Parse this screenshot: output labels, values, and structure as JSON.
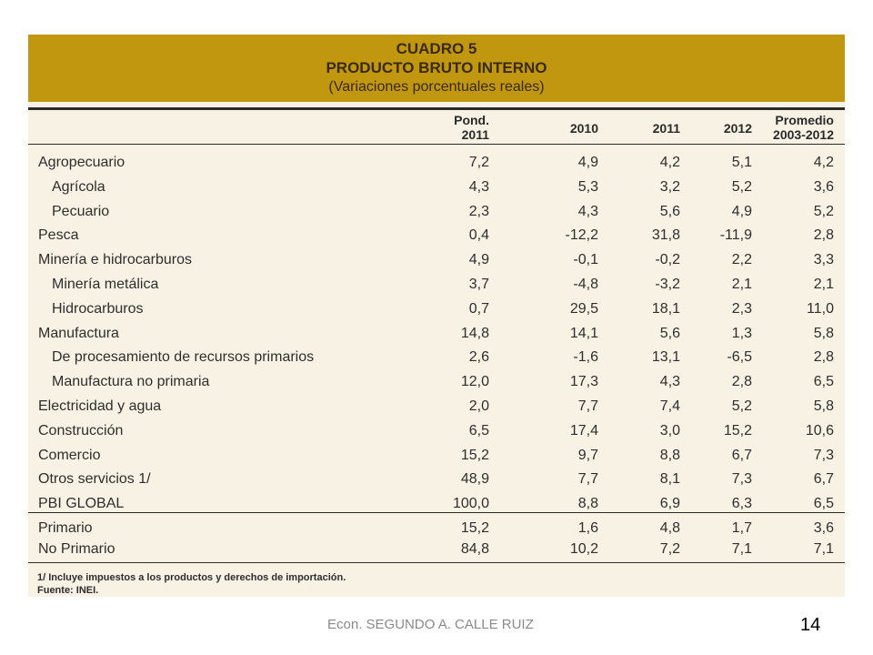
{
  "table": {
    "title1": "CUADRO 5",
    "title2": "PRODUCTO BRUTO INTERNO",
    "title3": "(Variaciones porcentuales reales)",
    "headers": {
      "pond_l1": "Pond.",
      "pond_l2": "2011",
      "y2010": "2010",
      "y2011": "2011",
      "y2012": "2012",
      "prom_l1": "Promedio",
      "prom_l2": "2003-2012"
    },
    "rows": [
      {
        "label": "Agropecuario",
        "v": [
          "7,2",
          "4,9",
          "4,2",
          "5,1",
          "4,2"
        ]
      },
      {
        "label": "Agrícola",
        "v": [
          "4,3",
          "5,3",
          "3,2",
          "5,2",
          "3,6"
        ]
      },
      {
        "label": "Pecuario",
        "v": [
          "2,3",
          "4,3",
          "5,6",
          "4,9",
          "5,2"
        ]
      },
      {
        "label": "Pesca",
        "v": [
          "0,4",
          "-12,2",
          "31,8",
          "-11,9",
          "2,8"
        ]
      },
      {
        "label": "Minería e hidrocarburos",
        "v": [
          "4,9",
          "-0,1",
          "-0,2",
          "2,2",
          "3,3"
        ]
      },
      {
        "label": "Minería metálica",
        "v": [
          "3,7",
          "-4,8",
          "-3,2",
          "2,1",
          "2,1"
        ]
      },
      {
        "label": "Hidrocarburos",
        "v": [
          "0,7",
          "29,5",
          "18,1",
          "2,3",
          "11,0"
        ]
      },
      {
        "label": "Manufactura",
        "v": [
          "14,8",
          "14,1",
          "5,6",
          "1,3",
          "5,8"
        ]
      },
      {
        "label": "De procesamiento de recursos primarios",
        "v": [
          "2,6",
          "-1,6",
          "13,1",
          "-6,5",
          "2,8"
        ]
      },
      {
        "label": "Manufactura no primaria",
        "v": [
          "12,0",
          "17,3",
          "4,3",
          "2,8",
          "6,5"
        ]
      },
      {
        "label": "Electricidad y agua",
        "v": [
          "2,0",
          "7,7",
          "7,4",
          "5,2",
          "5,8"
        ]
      },
      {
        "label": "Construcción",
        "v": [
          "6,5",
          "17,4",
          "3,0",
          "15,2",
          "10,6"
        ]
      },
      {
        "label": "Comercio",
        "v": [
          "15,2",
          "9,7",
          "8,8",
          "6,7",
          "7,3"
        ]
      },
      {
        "label": "Otros servicios 1/",
        "v": [
          "48,9",
          "7,7",
          "8,1",
          "7,3",
          "6,7"
        ]
      },
      {
        "label": "PBI GLOBAL",
        "v": [
          "100,0",
          "8,8",
          "6,9",
          "6,3",
          "6,5"
        ]
      }
    ],
    "summary_rows": [
      {
        "label": "Primario",
        "v": [
          "15,2",
          "1,6",
          "4,8",
          "1,7",
          "3,6"
        ]
      },
      {
        "label": "No Primario",
        "v": [
          "84,8",
          "10,2",
          "7,2",
          "7,1",
          "7,1"
        ]
      }
    ],
    "note1": "1/ Incluye impuestos a los productos y derechos de importación.",
    "note2": "Fuente: INEI."
  },
  "footer": {
    "author": "Econ. SEGUNDO A. CALLE RUIZ",
    "page": "14"
  }
}
